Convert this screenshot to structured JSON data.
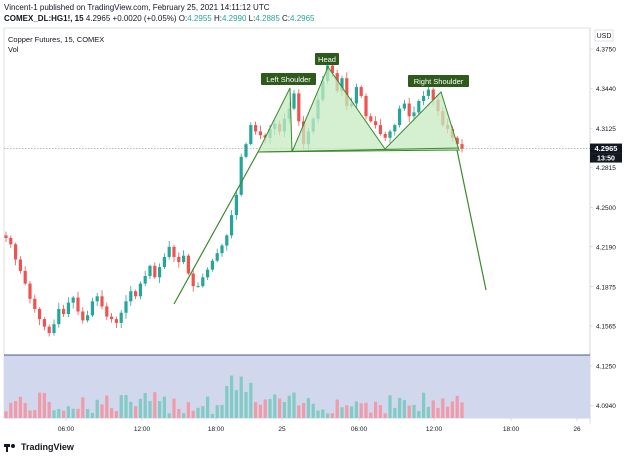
{
  "header": {
    "publisher_line": "Vincent-1 published on TradingView.com, February 25, 2021 14:11:12 UTC",
    "symbol": "COMEX_DL:HG1!, 15",
    "last": "4.2965",
    "change": "+0.0020 (+0.05%)",
    "ohlc_label_o": "O:",
    "ohlc_o": "4.2955",
    "ohlc_label_h": "H:",
    "ohlc_h": "4.2990",
    "ohlc_label_l": "L:",
    "ohlc_l": "4.2885",
    "ohlc_label_c": "C:",
    "ohlc_c": "4.2965"
  },
  "legend": {
    "title": "Copper Futures, 15, COMEX",
    "vol_label": "Vol"
  },
  "price_axis": {
    "currency": "USD",
    "ticks": [
      "4.3750",
      "4.3440",
      "4.3125",
      "4.2815",
      "4.2500",
      "4.2190",
      "4.1875",
      "4.1565",
      "4.1250",
      "4.0940"
    ],
    "last_price": "4.2965",
    "countdown": "13:50"
  },
  "time_axis": {
    "ticks": [
      "06:00",
      "12:00",
      "18:00",
      "25",
      "06:00",
      "12:00",
      "18:00",
      "26"
    ]
  },
  "annotations": {
    "left_shoulder": "Left Shoulder",
    "head": "Head",
    "right_shoulder": "Right Shoulder"
  },
  "footer": {
    "brand": "TradingView"
  },
  "colors": {
    "up": "#26a69a",
    "down": "#ef5350",
    "pattern_line": "#3a8a2c",
    "pattern_fill": "#c5ebc0",
    "label_bg": "#2e5a1c",
    "vol_band": "#d1d7ec",
    "vol_up": "#80cbc4",
    "vol_down": "#f19aa8"
  },
  "chart_data": {
    "type": "candlestick",
    "y_range": [
      4.084,
      4.39
    ],
    "neckline": 4.298,
    "prices": [
      4.226,
      4.221,
      4.209,
      4.2,
      4.19,
      4.178,
      4.17,
      4.162,
      4.156,
      4.151,
      4.158,
      4.17,
      4.166,
      4.175,
      4.179,
      4.168,
      4.161,
      4.165,
      4.176,
      4.18,
      4.172,
      4.164,
      4.162,
      4.159,
      4.167,
      4.176,
      4.184,
      4.18,
      4.19,
      4.196,
      4.204,
      4.195,
      4.203,
      4.211,
      4.219,
      4.211,
      4.207,
      4.212,
      4.198,
      4.188,
      4.188,
      4.195,
      4.201,
      4.208,
      4.214,
      4.22,
      4.228,
      4.244,
      4.26,
      4.29,
      4.3,
      4.315,
      4.31,
      4.307,
      4.305,
      4.312,
      4.316,
      4.31,
      4.32,
      4.328,
      4.34,
      4.318,
      4.3,
      4.31,
      4.32,
      4.335,
      4.35,
      4.362,
      4.356,
      4.342,
      4.352,
      4.33,
      4.332,
      4.345,
      4.338,
      4.322,
      4.318,
      4.315,
      4.308,
      4.305,
      4.31,
      4.315,
      4.328,
      4.332,
      4.322,
      4.325,
      4.334,
      4.338,
      4.343,
      4.335,
      4.326,
      4.315,
      4.312,
      4.305,
      4.3,
      4.2965
    ]
  }
}
